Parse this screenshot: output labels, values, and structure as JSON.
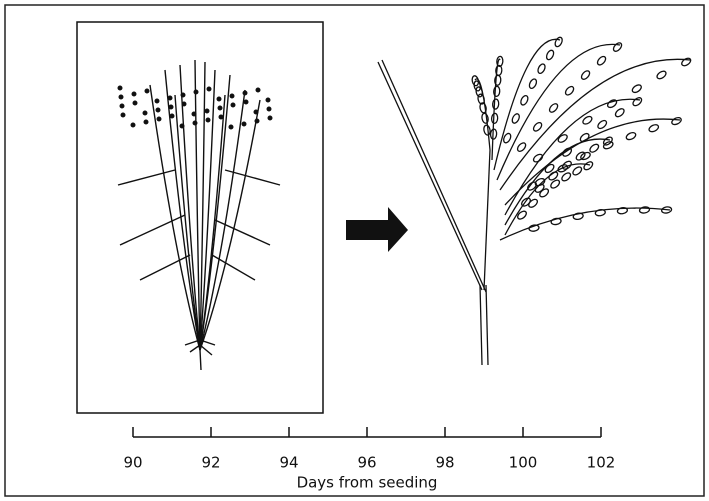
{
  "axis": {
    "label": "Days from seeding",
    "xlim": [
      90,
      102
    ],
    "xticks": [
      90,
      92,
      94,
      96,
      98,
      100,
      102
    ]
  }
}
